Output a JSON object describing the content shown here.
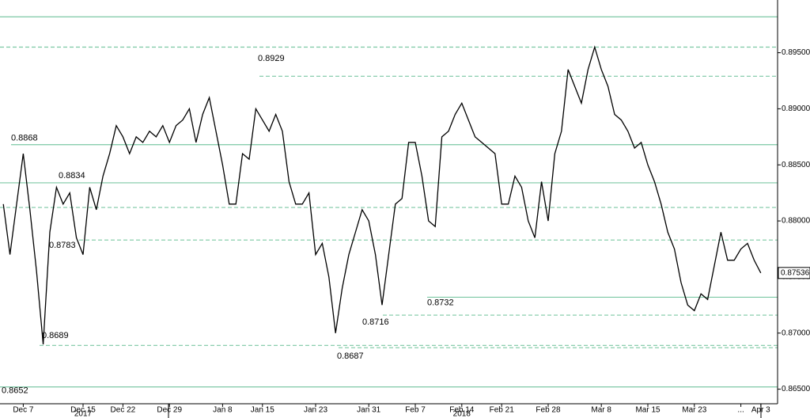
{
  "chart_data": {
    "type": "line",
    "categories": [
      null,
      null,
      null,
      "Dec 7",
      null,
      null,
      null,
      null,
      null,
      null,
      null,
      null,
      "Dec 15",
      null,
      null,
      null,
      null,
      null,
      "Dec 22",
      null,
      null,
      null,
      null,
      null,
      null,
      "Dec 29",
      null,
      null,
      null,
      null,
      null,
      null,
      null,
      "Jan 8",
      null,
      null,
      null,
      null,
      null,
      "Jan 15",
      null,
      null,
      null,
      null,
      null,
      null,
      null,
      "Jan 23",
      null,
      null,
      null,
      null,
      null,
      null,
      null,
      "Jan 31",
      null,
      null,
      null,
      null,
      null,
      null,
      "Feb 7",
      null,
      null,
      null,
      null,
      null,
      null,
      "Feb 14",
      null,
      null,
      null,
      null,
      null,
      "Feb 21",
      null,
      null,
      null,
      null,
      null,
      null,
      "Feb 28",
      null,
      null,
      null,
      null,
      null,
      null,
      null,
      "Mar 8",
      null,
      null,
      null,
      null,
      null,
      null,
      "Mar 15",
      null,
      null,
      null,
      null,
      null,
      null,
      "Mar 23",
      null,
      null,
      null,
      null,
      null,
      null,
      "...",
      null,
      null,
      "Apr 3"
    ],
    "year_labels": [
      "2017",
      "2018"
    ],
    "series": [
      {
        "color": "#000000",
        "values": [
          0.8815,
          0.877,
          0.8815,
          0.886,
          0.881,
          0.8755,
          0.869,
          0.879,
          0.883,
          0.8815,
          0.8825,
          0.8785,
          0.877,
          0.883,
          0.881,
          0.884,
          0.886,
          0.8885,
          0.8875,
          0.886,
          0.8875,
          0.887,
          0.888,
          0.8875,
          0.8885,
          0.887,
          0.8885,
          0.889,
          0.89,
          0.887,
          0.8895,
          0.891,
          0.888,
          0.885,
          0.8815,
          0.8815,
          0.886,
          0.8855,
          0.89,
          0.889,
          0.888,
          0.8895,
          0.888,
          0.8835,
          0.8815,
          0.8815,
          0.8825,
          0.877,
          0.878,
          0.875,
          0.87,
          0.874,
          0.877,
          0.879,
          0.881,
          0.88,
          0.877,
          0.8725,
          0.877,
          0.8815,
          0.882,
          0.887,
          0.887,
          0.884,
          0.88,
          0.8795,
          0.8875,
          0.888,
          0.8895,
          0.8905,
          0.889,
          0.8875,
          0.887,
          0.8865,
          0.886,
          0.8815,
          0.8815,
          0.884,
          0.883,
          0.88,
          0.8785,
          0.8835,
          0.88,
          0.886,
          0.888,
          0.8935,
          0.892,
          0.8905,
          0.8935,
          0.8955,
          0.8935,
          0.892,
          0.8895,
          0.889,
          0.888,
          0.8865,
          0.887,
          0.885,
          0.8835,
          0.8815,
          0.879,
          0.8775,
          0.8745,
          0.8725,
          0.872,
          0.8735,
          0.873,
          0.876,
          0.879,
          0.8765,
          0.8765,
          0.8775,
          0.878,
          0.8765,
          0.87536
        ]
      }
    ],
    "last_price": 0.87536,
    "annotated_levels": [
      {
        "value": 0.8982,
        "style": "solid"
      },
      {
        "value": 0.8929,
        "style": "dashed"
      },
      {
        "value": 0.8868,
        "style": "solid"
      },
      {
        "value": 0.8834,
        "style": "solid"
      },
      {
        "value": 0.8783,
        "style": "dashed"
      },
      {
        "value": 0.8689,
        "style": "dashed"
      },
      {
        "value": 0.8687,
        "style": "dashed"
      },
      {
        "value": 0.8716,
        "style": "dashed"
      },
      {
        "value": 0.8732,
        "style": "solid"
      },
      {
        "value": 0.8652,
        "style": "solid"
      }
    ],
    "levels": [
      {
        "value": 0.8955,
        "style": "dashed"
      },
      {
        "value": 0.8812,
        "style": "dashed"
      }
    ],
    "level_color": "#7cc8a4",
    "ylim": [
      0.8637,
      0.8997
    ],
    "yticks": [
      {
        "value": 0.865,
        "label": "0.86500"
      },
      {
        "value": 0.87,
        "label": "0.87000"
      },
      {
        "value": 0.875,
        "label": "0.87500"
      },
      {
        "value": 0.88,
        "label": "0.88000"
      },
      {
        "value": 0.885,
        "label": "0.88500"
      },
      {
        "value": 0.89,
        "label": "0.89000"
      },
      {
        "value": 0.895,
        "label": "0.89500"
      }
    ]
  }
}
